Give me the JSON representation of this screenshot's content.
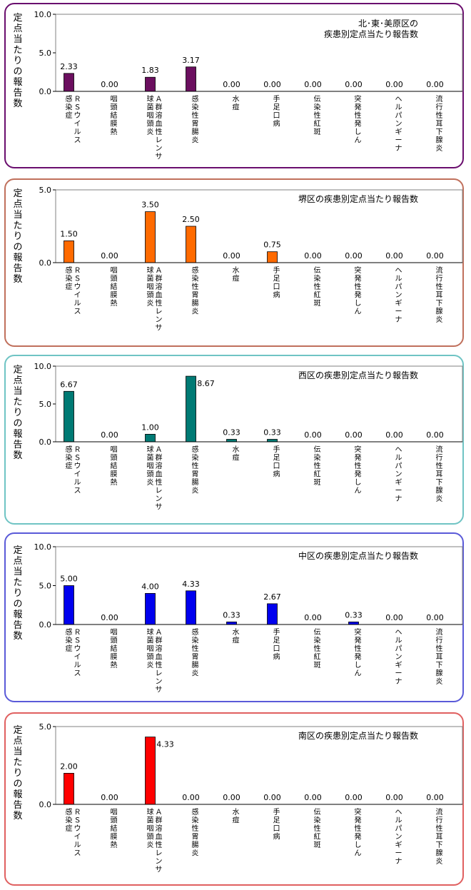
{
  "chart_data": [
    {
      "type": "bar",
      "title": "北･東･美原区の\n疾患別定点当たり報告数",
      "ylabel": "定点当たりの報告数",
      "ylim": [
        0,
        10
      ],
      "yticks": [
        "0.0",
        "5.0",
        "10.0"
      ],
      "border_color": "#6a0e6e",
      "bar_color": "#6b0f5f",
      "categories": [
        "ＲＳウイルス\n感染症",
        "咽頭結膜熱",
        "Ａ群溶血性レンサ\n球菌咽頭炎",
        "感染性胃腸炎",
        "水痘",
        "手足口病",
        "伝染性紅斑",
        "突発性発しん",
        "ヘルパンギーナ",
        "流行性耳下腺炎"
      ],
      "values": [
        2.33,
        0.0,
        1.83,
        3.17,
        0.0,
        0.0,
        0.0,
        0.0,
        0.0,
        0.0
      ],
      "value_labels": [
        "2.33",
        "0.00",
        "1.83",
        "3.17",
        "0.00",
        "0.00",
        "0.00",
        "0.00",
        "0.00",
        "0.00"
      ],
      "grid": false
    },
    {
      "type": "bar",
      "title": "堺区の疾患別定点当たり報告数",
      "ylabel": "定点当たりの報告数",
      "ylim": [
        0,
        5
      ],
      "yticks": [
        "0.0",
        "5.0"
      ],
      "border_color": "#c0705c",
      "bar_color": "#ff6a00",
      "categories": [
        "ＲＳウイルス\n感染症",
        "咽頭結膜熱",
        "Ａ群溶血性レンサ\n球菌咽頭炎",
        "感染性胃腸炎",
        "水痘",
        "手足口病",
        "伝染性紅斑",
        "突発性発しん",
        "ヘルパンギーナ",
        "流行性耳下腺炎"
      ],
      "values": [
        1.5,
        0.0,
        3.5,
        2.5,
        0.0,
        0.75,
        0.0,
        0.0,
        0.0,
        0.0
      ],
      "value_labels": [
        "1.50",
        "0.00",
        "3.50",
        "2.50",
        "0.00",
        "0.75",
        "0.00",
        "0.00",
        "0.00",
        "0.00"
      ],
      "grid": false
    },
    {
      "type": "bar",
      "title": "西区の疾患別定点当たり報告数",
      "ylabel": "定点当たりの報告数",
      "ylim": [
        0,
        10
      ],
      "yticks": [
        "0.0",
        "5.0",
        "10.0"
      ],
      "border_color": "#6fc4c4",
      "bar_color": "#007a74",
      "categories": [
        "ＲＳウイルス\n感染症",
        "咽頭結膜熱",
        "Ａ群溶血性レンサ\n球菌咽頭炎",
        "感染性胃腸炎",
        "水痘",
        "手足口病",
        "伝染性紅斑",
        "突発性発しん",
        "ヘルパンギーナ",
        "流行性耳下腺炎"
      ],
      "values": [
        6.67,
        0.0,
        1.0,
        8.67,
        0.33,
        0.33,
        0.0,
        0.0,
        0.0,
        0.0
      ],
      "value_labels": [
        "6.67",
        "0.00",
        "1.00",
        "8.67",
        "0.33",
        "0.33",
        "0.00",
        "0.00",
        "0.00",
        "0.00"
      ],
      "grid": false
    },
    {
      "type": "bar",
      "title": "中区の疾患別定点当たり報告数",
      "ylabel": "定点当たりの報告数",
      "ylim": [
        0,
        10
      ],
      "yticks": [
        "0.0",
        "5.0",
        "10.0"
      ],
      "border_color": "#5a5ad8",
      "bar_color": "#0000ee",
      "categories": [
        "ＲＳウイルス\n感染症",
        "咽頭結膜熱",
        "Ａ群溶血性レンサ\n球菌咽頭炎",
        "感染性胃腸炎",
        "水痘",
        "手足口病",
        "伝染性紅斑",
        "突発性発しん",
        "ヘルパンギーナ",
        "流行性耳下腺炎"
      ],
      "values": [
        5.0,
        0.0,
        4.0,
        4.33,
        0.33,
        2.67,
        0.0,
        0.33,
        0.0,
        0.0
      ],
      "value_labels": [
        "5.00",
        "0.00",
        "4.00",
        "4.33",
        "0.33",
        "2.67",
        "0.00",
        "0.33",
        "0.00",
        "0.00"
      ],
      "grid": false
    },
    {
      "type": "bar",
      "title": "南区の疾患別定点当たり報告数",
      "ylabel": "定点当たりの報告数",
      "ylim": [
        0,
        5
      ],
      "yticks": [
        "0.0",
        "5.0"
      ],
      "border_color": "#e06060",
      "bar_color": "#ff0000",
      "categories": [
        "ＲＳウイルス\n感染症",
        "咽頭結膜熱",
        "Ａ群溶血性レンサ\n球菌咽頭炎",
        "感染性胃腸炎",
        "水痘",
        "手足口病",
        "伝染性紅斑",
        "突発性発しん",
        "ヘルパンギーナ",
        "流行性耳下腺炎"
      ],
      "values": [
        2.0,
        0.0,
        4.33,
        0.0,
        0.0,
        0.0,
        0.0,
        0.0,
        0.0,
        0.0
      ],
      "value_labels": [
        "2.00",
        "0.00",
        "4.33",
        "0.00",
        "0.00",
        "0.00",
        "0.00",
        "0.00",
        "0.00",
        "0.00"
      ],
      "grid": false
    }
  ]
}
